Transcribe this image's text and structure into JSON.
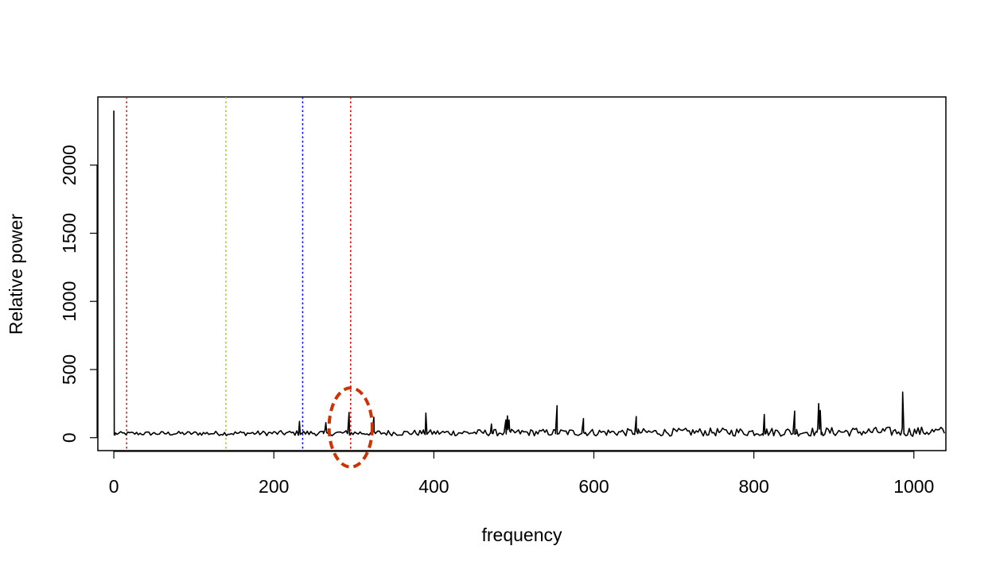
{
  "chart_data": {
    "type": "line",
    "title": "",
    "xlabel": "frequency",
    "ylabel": "Relative power",
    "xlim": [
      -20,
      1040
    ],
    "ylim": [
      -95,
      2500
    ],
    "x_ticks": [
      0,
      200,
      400,
      600,
      800,
      1000
    ],
    "y_ticks": [
      0,
      500,
      1000,
      1500,
      2000
    ],
    "x_tick_labels": [
      "0",
      "200",
      "400",
      "600",
      "800",
      "1000"
    ],
    "y_tick_labels": [
      "0",
      "500",
      "1000",
      "1500",
      "2000"
    ],
    "grid": false,
    "legend": "none",
    "series": [
      {
        "color": "#000000",
        "baseline": 30,
        "x": [
          0,
          0.5,
          1.5,
          230,
          232,
          234,
          262,
          265,
          268,
          292,
          294,
          296,
          323,
          325,
          327,
          388,
          390,
          392,
          470,
          472,
          474,
          488,
          490,
          492,
          494,
          496,
          552,
          554,
          556,
          585,
          587,
          589,
          651,
          653,
          655,
          811,
          813,
          815,
          849,
          851,
          853,
          879,
          881,
          883,
          885,
          984,
          986,
          988
        ],
        "y": [
          2400,
          20,
          20,
          30,
          120,
          30,
          30,
          110,
          30,
          30,
          185,
          30,
          30,
          150,
          30,
          30,
          180,
          30,
          30,
          100,
          30,
          40,
          130,
          160,
          130,
          40,
          30,
          235,
          30,
          40,
          140,
          30,
          30,
          155,
          30,
          30,
          170,
          30,
          30,
          195,
          30,
          40,
          250,
          200,
          40,
          30,
          335,
          30
        ]
      }
    ],
    "reference_lines": [
      {
        "x": 16,
        "color": "#b22222"
      },
      {
        "x": 140,
        "color": "#9acd32"
      },
      {
        "x": 236,
        "color": "#0000ff"
      },
      {
        "x": 296,
        "color": "#dd0000"
      }
    ],
    "annotation": {
      "type": "ellipse",
      "cx": 296,
      "cy": 75,
      "rx": 27,
      "ry": 290,
      "color": "#cc3300"
    }
  }
}
